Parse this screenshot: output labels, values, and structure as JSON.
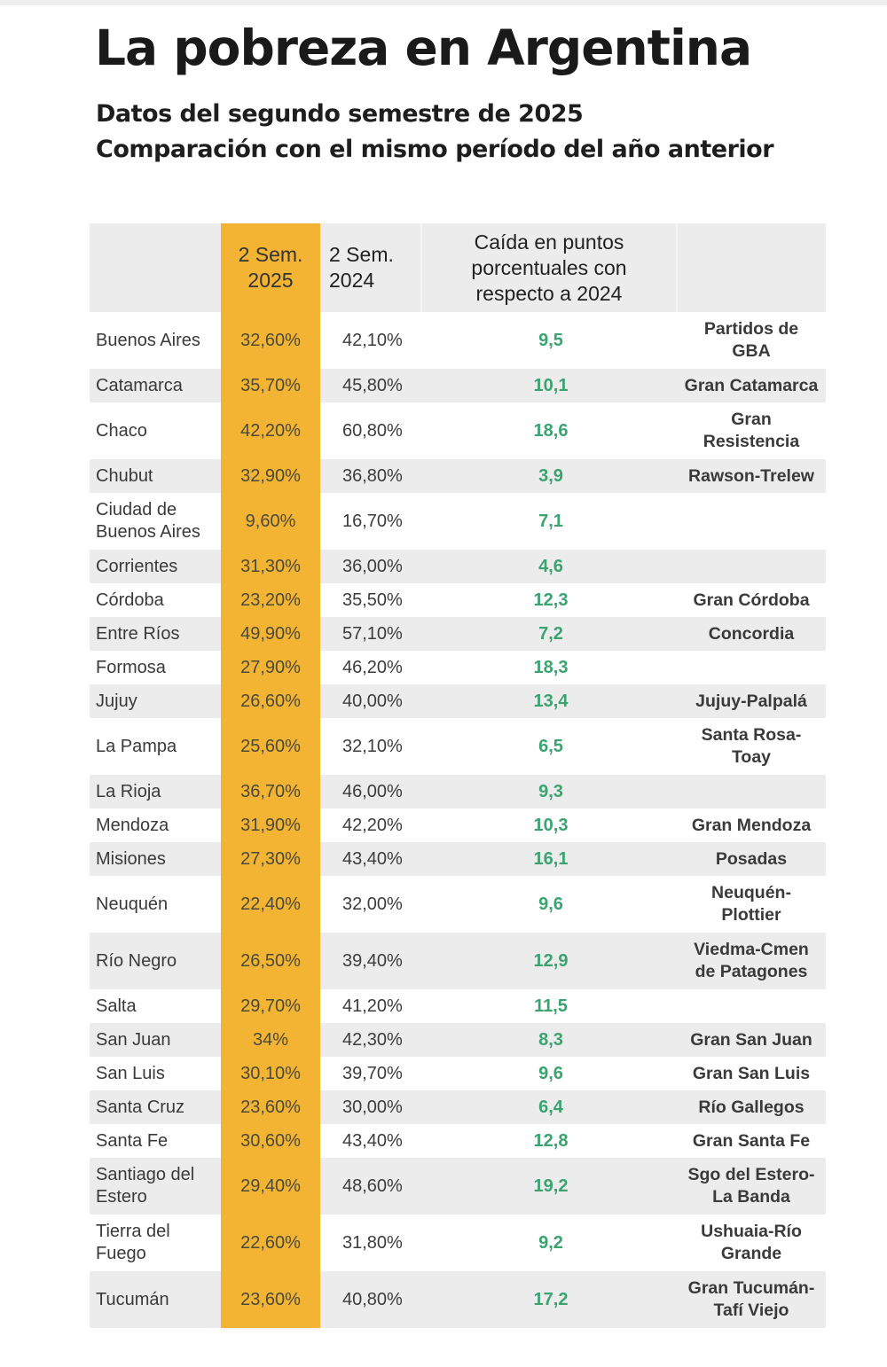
{
  "title": "La pobreza en Argentina",
  "subtitle_1": "Datos del segundo semestre de 2025",
  "subtitle_2": "Comparación con el mismo período del año anterior",
  "colors": {
    "highlight": "#f4b433",
    "drop_text": "#3aa370",
    "row_alt": "#ececec"
  },
  "chart_data": {
    "type": "table",
    "title": "La pobreza en Argentina",
    "subtitle": [
      "Datos del segundo semestre de 2025",
      "Comparación con el mismo período del año anterior"
    ],
    "columns": [
      "",
      "2 Sem. 2025",
      "2 Sem. 2024",
      "Caída en puntos porcentuales con respecto a 2024",
      ""
    ],
    "highlight_column": "2 Sem. 2025",
    "rows": [
      {
        "provincia": "Buenos Aires",
        "sem2_2025": "32,60%",
        "sem2_2024": "42,10%",
        "caida": "9,5",
        "aglomerado": "Partidos de GBA"
      },
      {
        "provincia": "Catamarca",
        "sem2_2025": "35,70%",
        "sem2_2024": "45,80%",
        "caida": "10,1",
        "aglomerado": "Gran Catamarca"
      },
      {
        "provincia": "Chaco",
        "sem2_2025": "42,20%",
        "sem2_2024": "60,80%",
        "caida": "18,6",
        "aglomerado": "Gran Resistencia"
      },
      {
        "provincia": "Chubut",
        "sem2_2025": "32,90%",
        "sem2_2024": "36,80%",
        "caida": "3,9",
        "aglomerado": "Rawson-Trelew"
      },
      {
        "provincia": "Ciudad de Buenos Aires",
        "sem2_2025": "9,60%",
        "sem2_2024": "16,70%",
        "caida": "7,1",
        "aglomerado": ""
      },
      {
        "provincia": "Corrientes",
        "sem2_2025": "31,30%",
        "sem2_2024": "36,00%",
        "caida": "4,6",
        "aglomerado": ""
      },
      {
        "provincia": "Córdoba",
        "sem2_2025": "23,20%",
        "sem2_2024": "35,50%",
        "caida": "12,3",
        "aglomerado": "Gran Córdoba"
      },
      {
        "provincia": "Entre Ríos",
        "sem2_2025": "49,90%",
        "sem2_2024": "57,10%",
        "caida": "7,2",
        "aglomerado": "Concordia"
      },
      {
        "provincia": "Formosa",
        "sem2_2025": "27,90%",
        "sem2_2024": "46,20%",
        "caida": "18,3",
        "aglomerado": ""
      },
      {
        "provincia": "Jujuy",
        "sem2_2025": "26,60%",
        "sem2_2024": "40,00%",
        "caida": "13,4",
        "aglomerado": "Jujuy-Palpalá"
      },
      {
        "provincia": "La Pampa",
        "sem2_2025": "25,60%",
        "sem2_2024": "32,10%",
        "caida": "6,5",
        "aglomerado": "Santa Rosa-Toay"
      },
      {
        "provincia": "La Rioja",
        "sem2_2025": "36,70%",
        "sem2_2024": "46,00%",
        "caida": "9,3",
        "aglomerado": ""
      },
      {
        "provincia": "Mendoza",
        "sem2_2025": "31,90%",
        "sem2_2024": "42,20%",
        "caida": "10,3",
        "aglomerado": "Gran Mendoza"
      },
      {
        "provincia": "Misiones",
        "sem2_2025": "27,30%",
        "sem2_2024": "43,40%",
        "caida": "16,1",
        "aglomerado": "Posadas"
      },
      {
        "provincia": "Neuquén",
        "sem2_2025": "22,40%",
        "sem2_2024": "32,00%",
        "caida": "9,6",
        "aglomerado": "Neuquén-Plottier"
      },
      {
        "provincia": "Río Negro",
        "sem2_2025": "26,50%",
        "sem2_2024": "39,40%",
        "caida": "12,9",
        "aglomerado": "Viedma-Cmen de Patagones"
      },
      {
        "provincia": "Salta",
        "sem2_2025": "29,70%",
        "sem2_2024": "41,20%",
        "caida": "11,5",
        "aglomerado": ""
      },
      {
        "provincia": "San Juan",
        "sem2_2025": "34%",
        "sem2_2024": "42,30%",
        "caida": "8,3",
        "aglomerado": "Gran San Juan"
      },
      {
        "provincia": "San Luis",
        "sem2_2025": "30,10%",
        "sem2_2024": "39,70%",
        "caida": "9,6",
        "aglomerado": "Gran San Luis"
      },
      {
        "provincia": "Santa Cruz",
        "sem2_2025": "23,60%",
        "sem2_2024": "30,00%",
        "caida": "6,4",
        "aglomerado": "Río Gallegos"
      },
      {
        "provincia": "Santa Fe",
        "sem2_2025": "30,60%",
        "sem2_2024": "43,40%",
        "caida": "12,8",
        "aglomerado": "Gran Santa Fe"
      },
      {
        "provincia": "Santiago del Estero",
        "sem2_2025": "29,40%",
        "sem2_2024": "48,60%",
        "caida": "19,2",
        "aglomerado": "Sgo del Estero-La Banda"
      },
      {
        "provincia": "Tierra del Fuego",
        "sem2_2025": "22,60%",
        "sem2_2024": "31,80%",
        "caida": "9,2",
        "aglomerado": "Ushuaia-Río Grande"
      },
      {
        "provincia": "Tucumán",
        "sem2_2025": "23,60%",
        "sem2_2024": "40,80%",
        "caida": "17,2",
        "aglomerado": "Gran Tucumán-Tafí Viejo"
      }
    ]
  },
  "header": {
    "col0": "",
    "col1": "2 Sem. 2025",
    "col2": "2 Sem. 2024",
    "col3": "Caída en puntos porcentuales con respecto a 2024",
    "col4": ""
  },
  "rows_display": [
    {
      "prov": [
        "Buenos Aires"
      ],
      "city": [
        "Partidos de",
        "GBA"
      ]
    },
    {
      "prov": [
        "Catamarca"
      ],
      "city": [
        "Gran Catamarca"
      ]
    },
    {
      "prov": [
        "Chaco"
      ],
      "city": [
        "Gran",
        "Resistencia"
      ]
    },
    {
      "prov": [
        "Chubut"
      ],
      "city": [
        "Rawson-Trelew"
      ]
    },
    {
      "prov": [
        "Ciudad de",
        "Buenos Aires"
      ],
      "city": []
    },
    {
      "prov": [
        "Corrientes"
      ],
      "city": []
    },
    {
      "prov": [
        "Córdoba"
      ],
      "city": [
        "Gran Córdoba"
      ]
    },
    {
      "prov": [
        "Entre Ríos"
      ],
      "city": [
        "Concordia"
      ]
    },
    {
      "prov": [
        "Formosa"
      ],
      "city": []
    },
    {
      "prov": [
        "Jujuy"
      ],
      "city": [
        "Jujuy-Palpalá"
      ]
    },
    {
      "prov": [
        "La Pampa"
      ],
      "city": [
        "Santa Rosa-",
        "Toay"
      ]
    },
    {
      "prov": [
        "La Rioja"
      ],
      "city": []
    },
    {
      "prov": [
        "Mendoza"
      ],
      "city": [
        "Gran Mendoza"
      ]
    },
    {
      "prov": [
        "Misiones"
      ],
      "city": [
        "Posadas"
      ]
    },
    {
      "prov": [
        "Neuquén"
      ],
      "city": [
        "Neuquén-",
        "Plottier"
      ]
    },
    {
      "prov": [
        "Río Negro"
      ],
      "city": [
        "Viedma-Cmen",
        "de Patagones"
      ]
    },
    {
      "prov": [
        "Salta"
      ],
      "city": []
    },
    {
      "prov": [
        "San Juan"
      ],
      "city": [
        "Gran San Juan"
      ]
    },
    {
      "prov": [
        "San Luis"
      ],
      "city": [
        "Gran San Luis"
      ]
    },
    {
      "prov": [
        "Santa Cruz"
      ],
      "city": [
        "Río Gallegos"
      ]
    },
    {
      "prov": [
        "Santa Fe"
      ],
      "city": [
        "Gran Santa Fe"
      ]
    },
    {
      "prov": [
        "Santiago del",
        "Estero"
      ],
      "city": [
        "Sgo del Estero-",
        "La Banda"
      ]
    },
    {
      "prov": [
        "Tierra del",
        "Fuego"
      ],
      "city": [
        "Ushuaia-Río",
        "Grande"
      ]
    },
    {
      "prov": [
        "Tucumán"
      ],
      "city": [
        "Gran Tucumán-",
        "Tafí Viejo"
      ]
    }
  ],
  "header_lines": {
    "col1": [
      "2 Sem.",
      "2025"
    ],
    "col2": [
      "2 Sem.",
      "2024"
    ],
    "col3": [
      "Caída en puntos",
      "porcentuales con",
      "respecto a 2024"
    ]
  }
}
